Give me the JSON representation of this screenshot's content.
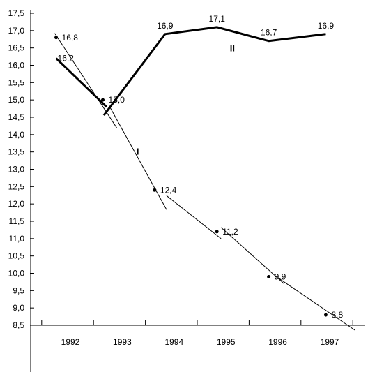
{
  "chart_data": {
    "type": "line",
    "title": "",
    "xlabel": "",
    "ylabel": "",
    "ylim": [
      8.5,
      17.5
    ],
    "y_ticks": [
      "8,5",
      "9,0",
      "9,5",
      "10,0",
      "10,5",
      "11,0",
      "11,5",
      "12,0",
      "12,5",
      "13,0",
      "13,5",
      "14,0",
      "14,5",
      "15,0",
      "15,5",
      "16,0",
      "16,5",
      "17,0",
      "17,5"
    ],
    "x_ticks": [
      "1992",
      "1993",
      "1994",
      "1995",
      "1996",
      "1997"
    ],
    "grid": false,
    "series": [
      {
        "name": "I",
        "style": "thin line with dots",
        "color": "#000000",
        "points": [
          {
            "x": 1991.9,
            "y": 16.8,
            "label": "16,8"
          },
          {
            "x": 1992.8,
            "y": 15.0,
            "label": "15,0"
          },
          {
            "x": 1993.8,
            "y": 12.4,
            "label": "12,4"
          },
          {
            "x": 1995.0,
            "y": 11.2,
            "label": "11,2"
          },
          {
            "x": 1996.0,
            "y": 9.9,
            "label": "9,9"
          },
          {
            "x": 1997.1,
            "y": 8.8,
            "label": "8,8"
          }
        ]
      },
      {
        "name": "II",
        "style": "thick line",
        "color": "#000000",
        "points": [
          {
            "x": 1991.9,
            "y": 16.2,
            "label": "16,2"
          },
          {
            "x": 1992.9,
            "y": 15.0,
            "label": ""
          },
          {
            "x": 1994.0,
            "y": 16.9,
            "label": "16,9"
          },
          {
            "x": 1995.0,
            "y": 17.1,
            "label": "17,1"
          },
          {
            "x": 1996.0,
            "y": 16.7,
            "label": "16,7"
          },
          {
            "x": 1997.1,
            "y": 16.9,
            "label": "16,9"
          }
        ]
      }
    ]
  }
}
